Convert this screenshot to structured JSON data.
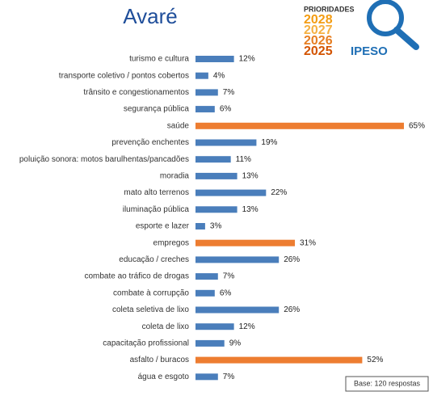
{
  "chart_data": {
    "type": "bar",
    "orientation": "horizontal",
    "title": "Avaré",
    "categories": [
      "turismo e cultura",
      "transporte coletivo / pontos cobertos",
      "trânsito e congestionamentos",
      "segurança pública",
      "saúde",
      "prevenção enchentes",
      "poluição sonora: motos barulhentas/pancadões",
      "moradia",
      "mato alto terrenos",
      "iluminação pública",
      "esporte e lazer",
      "empregos",
      "educação / creches",
      "combate ao tráfico de drogas",
      "combate à corrupção",
      "coleta seletiva de lixo",
      "coleta de lixo",
      "capacitação profissional",
      "asfalto / buracos",
      "água e esgoto"
    ],
    "values": [
      12,
      4,
      7,
      6,
      65,
      19,
      11,
      13,
      22,
      13,
      3,
      31,
      26,
      7,
      6,
      26,
      12,
      9,
      52,
      7
    ],
    "value_labels": [
      "12%",
      "4%",
      "7%",
      "6%",
      "65%",
      "19%",
      "11%",
      "13%",
      "22%",
      "13%",
      "3%",
      "31%",
      "26%",
      "7%",
      "6%",
      "26%",
      "12%",
      "9%",
      "52%",
      "7%"
    ],
    "colors": [
      "#4a7ebb",
      "#4a7ebb",
      "#4a7ebb",
      "#4a7ebb",
      "#ed7d31",
      "#4a7ebb",
      "#4a7ebb",
      "#4a7ebb",
      "#4a7ebb",
      "#4a7ebb",
      "#4a7ebb",
      "#ed7d31",
      "#4a7ebb",
      "#4a7ebb",
      "#4a7ebb",
      "#4a7ebb",
      "#4a7ebb",
      "#4a7ebb",
      "#ed7d31",
      "#4a7ebb"
    ],
    "xlim": [
      0,
      65
    ],
    "note": "Base: 120 respostas"
  },
  "logo": {
    "heading": "PRIORIDADES",
    "years": [
      "2028",
      "2027",
      "2026",
      "2025"
    ],
    "brand": "IPESO"
  }
}
